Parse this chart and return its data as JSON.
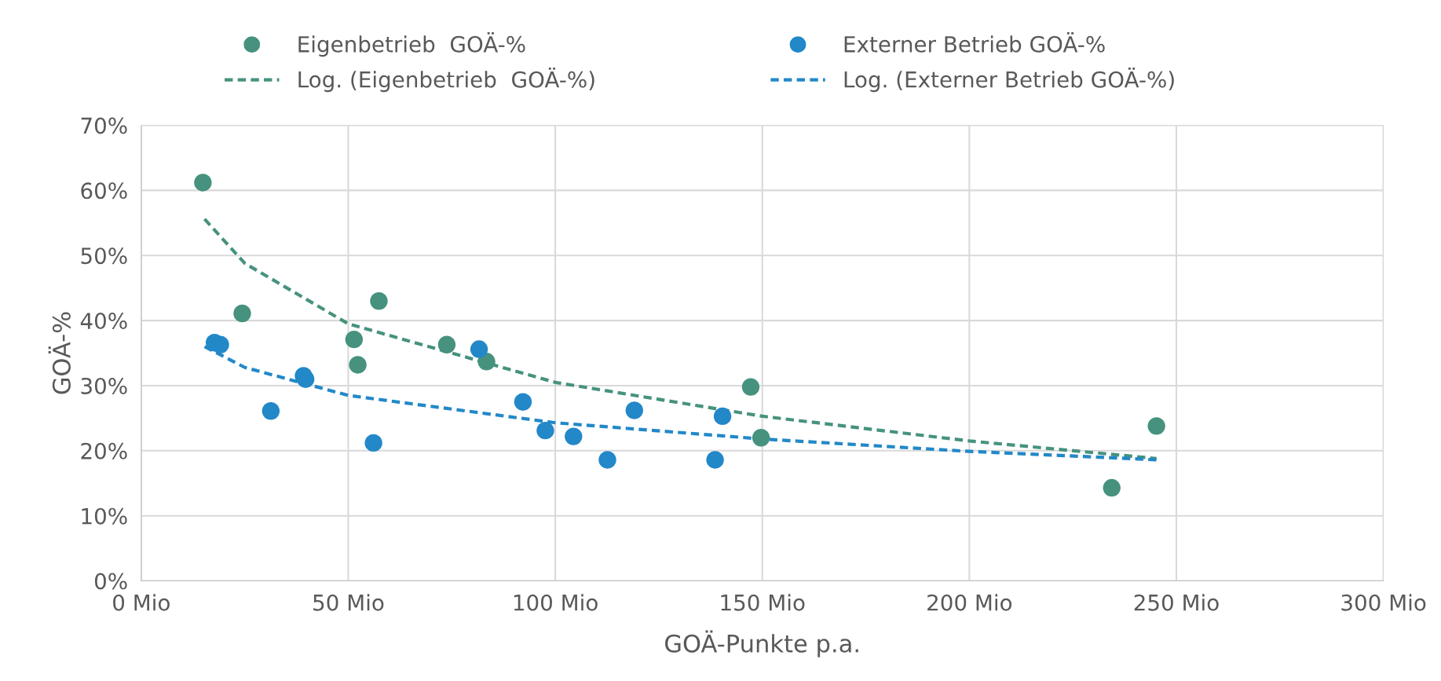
{
  "chart_data": {
    "type": "scatter",
    "xlabel": "GOÄ-Punkte p.a.",
    "ylabel": "GOÄ-%",
    "xlim": [
      0,
      300
    ],
    "xticks": [
      {
        "value": 0,
        "label": "0 Mio"
      },
      {
        "value": 50,
        "label": "50 Mio"
      },
      {
        "value": 100,
        "label": "100 Mio"
      },
      {
        "value": 150,
        "label": "150 Mio"
      },
      {
        "value": 200,
        "label": "200 Mio"
      },
      {
        "value": 250,
        "label": "250 Mio"
      },
      {
        "value": 300,
        "label": "300 Mio"
      }
    ],
    "ylim": [
      0,
      70
    ],
    "yticks": [
      {
        "value": 0,
        "label": "0%"
      },
      {
        "value": 10,
        "label": "10%"
      },
      {
        "value": 20,
        "label": "20%"
      },
      {
        "value": 30,
        "label": "30%"
      },
      {
        "value": 40,
        "label": "40%"
      },
      {
        "value": 50,
        "label": "50%"
      },
      {
        "value": 60,
        "label": "60%"
      },
      {
        "value": 70,
        "label": "70%"
      }
    ],
    "grid": true,
    "legend": "top",
    "marker": "circle",
    "series": [
      {
        "name": "Eigenbetrieb  GOÄ-%",
        "color": "#46927e",
        "x": [
          14.9,
          24.4,
          51.4,
          52.3,
          57.4,
          73.8,
          83.4,
          147.2,
          149.7,
          234.4,
          245.2
        ],
        "values": [
          61.2,
          41.1,
          37.1,
          33.2,
          43.0,
          36.3,
          33.7,
          29.8,
          22.0,
          14.3,
          23.8
        ]
      },
      {
        "name": "Externer Betrieb GOÄ-%",
        "color": "#2288c8",
        "x": [
          17.7,
          19.1,
          31.3,
          39.2,
          39.7,
          56.1,
          81.6,
          92.2,
          97.6,
          104.4,
          112.6,
          119.1,
          138.6,
          140.4
        ],
        "values": [
          36.6,
          36.3,
          26.1,
          31.5,
          31.0,
          21.2,
          35.6,
          27.5,
          23.1,
          22.2,
          18.6,
          26.2,
          18.6,
          25.3
        ]
      },
      {
        "name": "Log. (Eigenbetrieb  GOÄ-%)",
        "type": "line",
        "line_style": "dashed",
        "marker": "none",
        "color": "#46927e",
        "x": [
          15.3,
          25,
          50,
          100,
          150,
          200,
          245.2
        ],
        "values": [
          55.6,
          48.8,
          39.5,
          30.5,
          25.3,
          21.5,
          18.8
        ]
      },
      {
        "name": "Log. (Externer Betrieb GOÄ-%)",
        "type": "line",
        "line_style": "dashed",
        "marker": "none",
        "color": "#2288c8",
        "x": [
          15.3,
          25,
          50,
          100,
          150,
          200,
          245.2
        ],
        "values": [
          36.0,
          32.8,
          28.5,
          24.3,
          21.8,
          19.9,
          18.6
        ]
      }
    ]
  }
}
